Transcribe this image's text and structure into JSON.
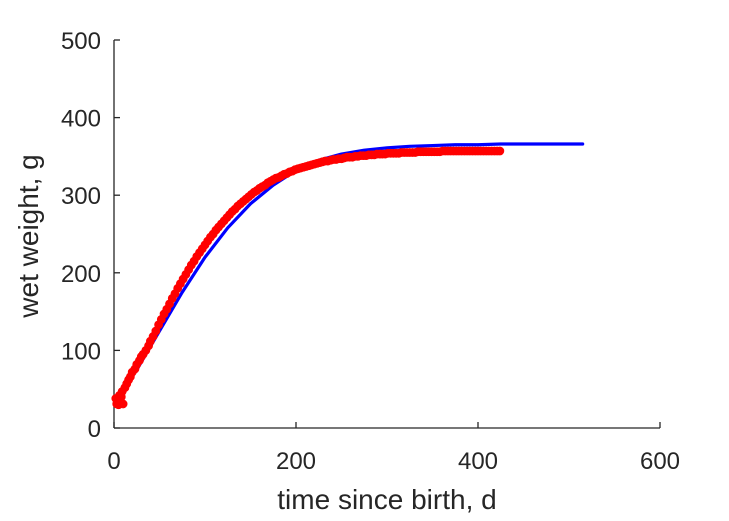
{
  "chart_data": {
    "type": "scatter",
    "title": "",
    "xlabel": "time since birth, d",
    "ylabel": "wet weight, g",
    "xlim": [
      0,
      600
    ],
    "ylim": [
      0,
      500
    ],
    "x_ticks": [
      0,
      200,
      400,
      600
    ],
    "y_ticks": [
      0,
      100,
      200,
      300,
      400,
      500
    ],
    "grid": false,
    "legend": "none",
    "colors": {
      "points": "#ff0000",
      "curve": "#0000ff",
      "axis": "#262626"
    },
    "series": [
      {
        "kind": "scatter",
        "points": [
          [
            2,
            38
          ],
          [
            3,
            31
          ],
          [
            4,
            35
          ],
          [
            5,
            30
          ],
          [
            6,
            42
          ],
          [
            7,
            35
          ],
          [
            8,
            40
          ],
          [
            9,
            47
          ],
          [
            10,
            31
          ],
          [
            12,
            52
          ],
          [
            14,
            57
          ],
          [
            16,
            62
          ],
          [
            18,
            66
          ],
          [
            20,
            72
          ],
          [
            23,
            76
          ],
          [
            25,
            82
          ],
          [
            28,
            87
          ],
          [
            30,
            92
          ],
          [
            32,
            95
          ],
          [
            35,
            100
          ],
          [
            38,
            106
          ],
          [
            40,
            112
          ],
          [
            43,
            118
          ],
          [
            46,
            125
          ],
          [
            49,
            133
          ],
          [
            52,
            140
          ],
          [
            55,
            147
          ],
          [
            58,
            153
          ],
          [
            61,
            160
          ],
          [
            64,
            167
          ],
          [
            67,
            173
          ],
          [
            70,
            180
          ],
          [
            73,
            186
          ],
          [
            76,
            192
          ],
          [
            79,
            198
          ],
          [
            82,
            204
          ],
          [
            85,
            210
          ],
          [
            88,
            215
          ],
          [
            91,
            221
          ],
          [
            94,
            226
          ],
          [
            97,
            231
          ],
          [
            100,
            236
          ],
          [
            103,
            241
          ],
          [
            106,
            246
          ],
          [
            109,
            250
          ],
          [
            112,
            255
          ],
          [
            115,
            259
          ],
          [
            118,
            263
          ],
          [
            121,
            267
          ],
          [
            124,
            271
          ],
          [
            127,
            275
          ],
          [
            130,
            279
          ],
          [
            133,
            282
          ],
          [
            136,
            286
          ],
          [
            139,
            289
          ],
          [
            142,
            292
          ],
          [
            145,
            295
          ],
          [
            148,
            298
          ],
          [
            151,
            301
          ],
          [
            154,
            304
          ],
          [
            157,
            306
          ],
          [
            160,
            309
          ],
          [
            163,
            311
          ],
          [
            166,
            313
          ],
          [
            169,
            316
          ],
          [
            172,
            318
          ],
          [
            175,
            320
          ],
          [
            178,
            322
          ],
          [
            181,
            323
          ],
          [
            184,
            325
          ],
          [
            187,
            327
          ],
          [
            190,
            328
          ],
          [
            193,
            330
          ],
          [
            196,
            331
          ],
          [
            199,
            333
          ],
          [
            202,
            334
          ],
          [
            205,
            335
          ],
          [
            208,
            336
          ],
          [
            211,
            337
          ],
          [
            214,
            338
          ],
          [
            217,
            339
          ],
          [
            220,
            340
          ],
          [
            223,
            341
          ],
          [
            226,
            342
          ],
          [
            229,
            343
          ],
          [
            232,
            344
          ],
          [
            235,
            344
          ],
          [
            238,
            345
          ],
          [
            241,
            346
          ],
          [
            244,
            346
          ],
          [
            247,
            347
          ],
          [
            250,
            347
          ],
          [
            253,
            348
          ],
          [
            256,
            349
          ],
          [
            259,
            349
          ],
          [
            262,
            349
          ],
          [
            265,
            350
          ],
          [
            268,
            350
          ],
          [
            271,
            351
          ],
          [
            274,
            351
          ],
          [
            277,
            351
          ],
          [
            280,
            352
          ],
          [
            283,
            352
          ],
          [
            286,
            352
          ],
          [
            289,
            353
          ],
          [
            292,
            353
          ],
          [
            295,
            353
          ],
          [
            298,
            353
          ],
          [
            301,
            354
          ],
          [
            304,
            354
          ],
          [
            307,
            354
          ],
          [
            310,
            354
          ],
          [
            313,
            354
          ],
          [
            316,
            355
          ],
          [
            319,
            355
          ],
          [
            322,
            355
          ],
          [
            325,
            355
          ],
          [
            328,
            355
          ],
          [
            331,
            355
          ],
          [
            334,
            356
          ],
          [
            337,
            356
          ],
          [
            340,
            356
          ],
          [
            343,
            356
          ],
          [
            346,
            356
          ],
          [
            349,
            356
          ],
          [
            352,
            356
          ],
          [
            355,
            356
          ],
          [
            358,
            356
          ],
          [
            361,
            357
          ],
          [
            364,
            357
          ],
          [
            367,
            357
          ],
          [
            370,
            357
          ],
          [
            373,
            357
          ],
          [
            376,
            357
          ],
          [
            379,
            357
          ],
          [
            382,
            357
          ],
          [
            385,
            357
          ],
          [
            388,
            357
          ],
          [
            391,
            357
          ],
          [
            394,
            357
          ],
          [
            397,
            357
          ],
          [
            400,
            357
          ],
          [
            403,
            357
          ],
          [
            406,
            357
          ],
          [
            409,
            357
          ],
          [
            412,
            357
          ],
          [
            415,
            357
          ],
          [
            418,
            357
          ],
          [
            421,
            357
          ],
          [
            424,
            357
          ]
        ]
      },
      {
        "kind": "curve",
        "points": [
          [
            5,
            40
          ],
          [
            25,
            75
          ],
          [
            50,
            125
          ],
          [
            75,
            175
          ],
          [
            100,
            220
          ],
          [
            125,
            258
          ],
          [
            150,
            289
          ],
          [
            175,
            313
          ],
          [
            200,
            332
          ],
          [
            225,
            345
          ],
          [
            250,
            353
          ],
          [
            275,
            358
          ],
          [
            300,
            361
          ],
          [
            325,
            363
          ],
          [
            350,
            364
          ],
          [
            375,
            365
          ],
          [
            400,
            365
          ],
          [
            425,
            366
          ],
          [
            450,
            366
          ],
          [
            475,
            366
          ],
          [
            500,
            366
          ],
          [
            515,
            366
          ]
        ]
      }
    ]
  }
}
